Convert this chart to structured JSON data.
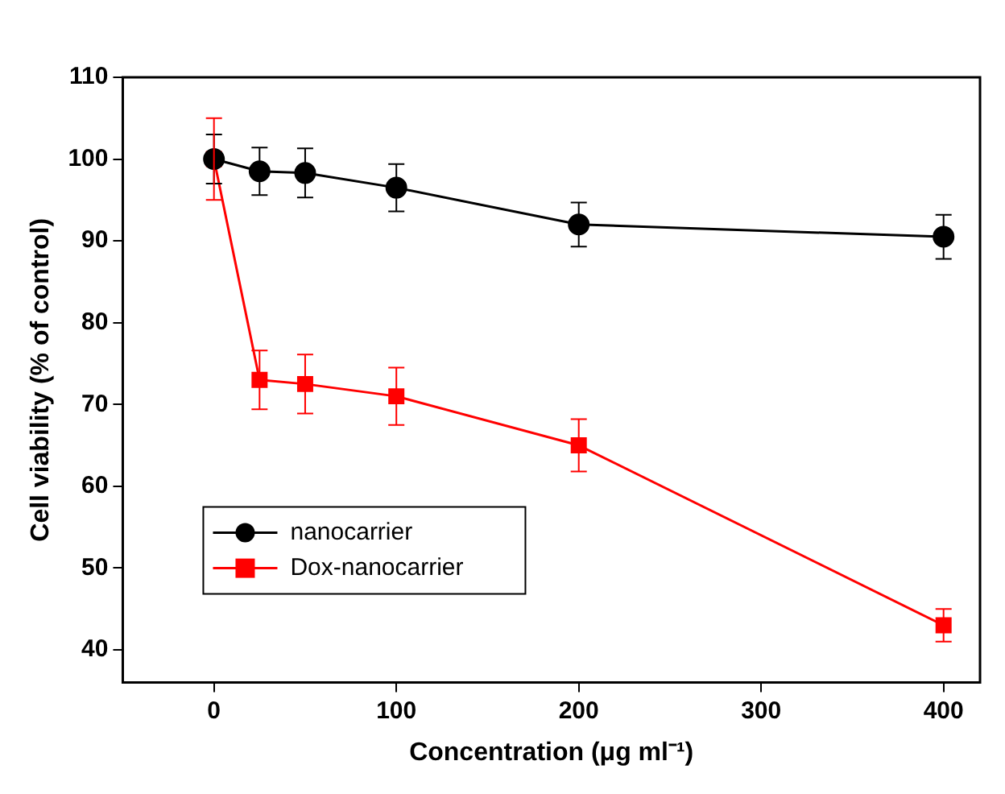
{
  "chart_data": {
    "type": "line",
    "xlabel": "Concentration (μg ml⁻¹)",
    "ylabel": "Cell viability (% of control)",
    "x": [
      0,
      25,
      50,
      100,
      200,
      400
    ],
    "series": [
      {
        "name": "nanocarrier",
        "color": "#000000",
        "marker": "circle",
        "values": [
          100,
          98.5,
          98.3,
          96.5,
          92,
          90.5
        ],
        "errors": [
          3,
          2.9,
          3,
          2.9,
          2.7,
          2.7
        ]
      },
      {
        "name": "Dox-nanocarrier",
        "color": "#ff0000",
        "marker": "square",
        "values": [
          100,
          73,
          72.5,
          71,
          65,
          43
        ],
        "errors": [
          5,
          3.6,
          3.6,
          3.5,
          3.2,
          2
        ]
      }
    ],
    "xlim": [
      -50,
      420
    ],
    "xticks": [
      0,
      100,
      200,
      300,
      400
    ],
    "ylim": [
      36,
      110
    ],
    "yticks": [
      40,
      50,
      60,
      70,
      80,
      90,
      100,
      110
    ],
    "grid": false,
    "legend": "bottom left",
    "line_style": "solid"
  }
}
